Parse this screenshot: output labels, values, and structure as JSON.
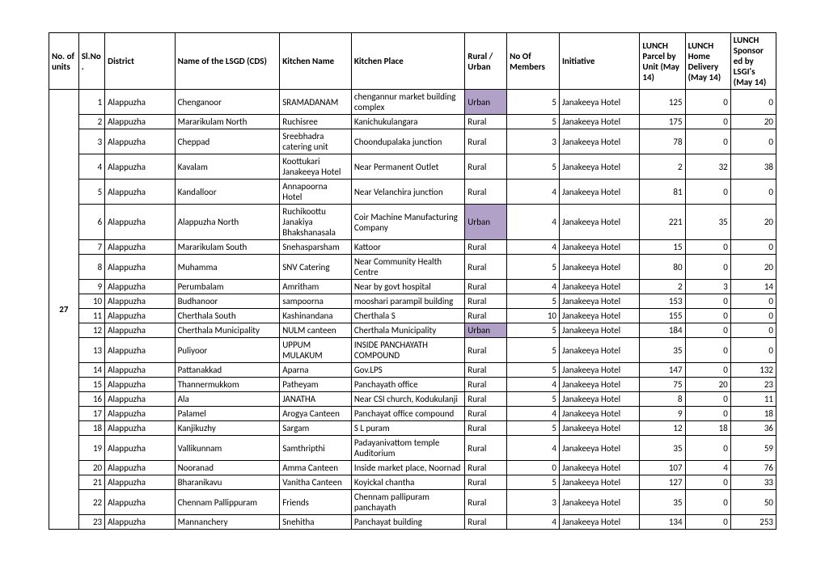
{
  "headers": {
    "units": "No. of units",
    "sl": "Sl.No.",
    "district": "District",
    "lsgd": "Name of the LSGD (CDS)",
    "kname": "Kitchen Name",
    "kplace": "Kitchen Place",
    "rural": "Rural / Urban",
    "members": "No Of Members",
    "init": "Initiative",
    "parcel": "LUNCH Parcel by Unit (May 14)",
    "home": "LUNCH Home Delivery (May 14)",
    "sponsor": "LUNCH Sponsor ed by LSGI's (May 14)"
  },
  "units_label": "27",
  "rows": [
    {
      "sl": 1,
      "district": "Alappuzha",
      "lsgd": "Chenganoor",
      "kname": "SRAMADANAM",
      "kplace": "chengannur market building complex",
      "rural": "Urban",
      "hl": true,
      "members": 5,
      "init": "Janakeeya Hotel",
      "parcel": 125,
      "home": 0,
      "sponsor": 0
    },
    {
      "sl": 2,
      "district": "Alappuzha",
      "lsgd": "Mararikulam North",
      "kname": "Ruchisree",
      "kplace": "Kanichukulangara",
      "rural": "Rural",
      "members": 5,
      "init": "Janakeeya Hotel",
      "parcel": 175,
      "home": 0,
      "sponsor": 20
    },
    {
      "sl": 3,
      "district": "Alappuzha",
      "lsgd": "Cheppad",
      "kname": "Sreebhadra catering unit",
      "kplace": "Choondupalaka junction",
      "rural": "Rural",
      "members": 3,
      "init": "Janakeeya Hotel",
      "parcel": 78,
      "home": 0,
      "sponsor": 0
    },
    {
      "sl": 4,
      "district": "Alappuzha",
      "lsgd": "Kavalam",
      "kname": "Koottukari Janakeeya Hotel",
      "kplace": "Near Permanent Outlet",
      "rural": "Rural",
      "members": 5,
      "init": "Janakeeya Hotel",
      "parcel": 2,
      "home": 32,
      "sponsor": 38
    },
    {
      "sl": 5,
      "district": "Alappuzha",
      "lsgd": "Kandalloor",
      "kname": "Annapoorna Hotel",
      "kplace": "Near Velanchira junction",
      "rural": "Rural",
      "members": 4,
      "init": "Janakeeya Hotel",
      "parcel": 81,
      "home": 0,
      "sponsor": 0
    },
    {
      "sl": 6,
      "district": "Alappuzha",
      "lsgd": "Alappuzha North",
      "kname": "Ruchikoottu Janakiya Bhakshanasala",
      "kplace": "Coir Machine Manufacturing Company",
      "rural": "Urban",
      "hl": true,
      "members": 4,
      "init": "Janakeeya Hotel",
      "parcel": 221,
      "home": 35,
      "sponsor": 20
    },
    {
      "sl": 7,
      "district": "Alappuzha",
      "lsgd": "Mararikulam South",
      "kname": "Snehasparsham",
      "kplace": "Kattoor",
      "rural": "Rural",
      "members": 4,
      "init": "Janakeeya Hotel",
      "parcel": 15,
      "home": 0,
      "sponsor": 0
    },
    {
      "sl": 8,
      "district": "Alappuzha",
      "lsgd": "Muhamma",
      "kname": "SNV Catering",
      "kplace": "Near Community Health Centre",
      "rural": "Rural",
      "members": 5,
      "init": "Janakeeya Hotel",
      "parcel": 80,
      "home": 0,
      "sponsor": 20
    },
    {
      "sl": 9,
      "district": "Alappuzha",
      "lsgd": "Perumbalam",
      "kname": "Amritham",
      "kplace": "Near by govt hospital",
      "rural": "Rural",
      "members": 4,
      "init": "Janakeeya Hotel",
      "parcel": 2,
      "home": 3,
      "sponsor": 14
    },
    {
      "sl": 10,
      "district": "Alappuzha",
      "lsgd": "Budhanoor",
      "kname": "sampoorna",
      "kplace": "mooshari parampil building",
      "rural": "Rural",
      "members": 5,
      "init": "Janakeeya Hotel",
      "parcel": 153,
      "home": 0,
      "sponsor": 0
    },
    {
      "sl": 11,
      "district": "Alappuzha",
      "lsgd": "Cherthala South",
      "kname": "Kashinandana",
      "kplace": "Cherthala S",
      "rural": "Rural",
      "members": 10,
      "init": "Janakeeya Hotel",
      "parcel": 155,
      "home": 0,
      "sponsor": 0
    },
    {
      "sl": 12,
      "district": "Alappuzha",
      "lsgd": "Cherthala Municipality",
      "kname": "NULM canteen",
      "kplace": "Cherthala Municipality",
      "rural": "Urban",
      "hl": true,
      "members": 5,
      "init": "Janakeeya Hotel",
      "parcel": 184,
      "home": 0,
      "sponsor": 0
    },
    {
      "sl": 13,
      "district": "Alappuzha",
      "lsgd": "Puliyoor",
      "kname": "UPPUM MULAKUM",
      "kplace": "INSIDE PANCHAYATH COMPOUND",
      "rural": "Rural",
      "members": 5,
      "init": "Janakeeya Hotel",
      "parcel": 35,
      "home": 0,
      "sponsor": 0
    },
    {
      "sl": 14,
      "district": "Alappuzha",
      "lsgd": "Pattanakkad",
      "kname": "Aparna",
      "kplace": "Gov.LPS",
      "rural": "Rural",
      "members": 5,
      "init": "Janakeeya Hotel",
      "parcel": 147,
      "home": 0,
      "sponsor": 132
    },
    {
      "sl": 15,
      "district": "Alappuzha",
      "lsgd": "Thannermukkom",
      "kname": "Patheyam",
      "kplace": "Panchayath office",
      "rural": "Rural",
      "members": 4,
      "init": "Janakeeya Hotel",
      "parcel": 75,
      "home": 20,
      "sponsor": 23
    },
    {
      "sl": 16,
      "district": "Alappuzha",
      "lsgd": "Ala",
      "kname": "JANATHA",
      "kplace": "Near CSI church, Kodukulanji",
      "rural": "Rural",
      "members": 5,
      "init": "Janakeeya Hotel",
      "parcel": 8,
      "home": 0,
      "sponsor": 11
    },
    {
      "sl": 17,
      "district": "Alappuzha",
      "lsgd": "Palamel",
      "kname": "Arogya Canteen",
      "kplace": "Panchayat office compound",
      "rural": "Rural",
      "members": 4,
      "init": "Janakeeya Hotel",
      "parcel": 9,
      "home": 0,
      "sponsor": 18
    },
    {
      "sl": 18,
      "district": "Alappuzha",
      "lsgd": "Kanjikuzhy",
      "kname": "Sargam",
      "kplace": "S L puram",
      "rural": "Rural",
      "members": 5,
      "init": "Janakeeya Hotel",
      "parcel": 12,
      "home": 18,
      "sponsor": 36
    },
    {
      "sl": 19,
      "district": "Alappuzha",
      "lsgd": "Vallikunnam",
      "kname": "Samthripthi",
      "kplace": "Padayanivattom temple Auditorium",
      "rural": "Rural",
      "members": 4,
      "init": "Janakeeya Hotel",
      "parcel": 35,
      "home": 0,
      "sponsor": 59
    },
    {
      "sl": 20,
      "district": "Alappuzha",
      "lsgd": "Nooranad",
      "kname": "Amma Canteen",
      "kplace": "Inside market place, Noornad",
      "rural": "Rural",
      "members": 0,
      "init": "Janakeeya Hotel",
      "parcel": 107,
      "home": 4,
      "sponsor": 76
    },
    {
      "sl": 21,
      "district": "Alappuzha",
      "lsgd": "Bharanikavu",
      "kname": "Vanitha Canteen",
      "kplace": "Koyickal chantha",
      "rural": "Rural",
      "members": 5,
      "init": "Janakeeya Hotel",
      "parcel": 127,
      "home": 0,
      "sponsor": 33
    },
    {
      "sl": 22,
      "district": "Alappuzha",
      "lsgd": "Chennam Pallippuram",
      "kname": "Friends",
      "kplace": "Chennam pallipuram panchayath",
      "rural": "Rural",
      "members": 3,
      "init": "Janakeeya Hotel",
      "parcel": 35,
      "home": 0,
      "sponsor": 50
    },
    {
      "sl": 23,
      "district": "Alappuzha",
      "lsgd": "Mannanchery",
      "kname": "Snehitha",
      "kplace": "Panchayat building",
      "rural": "Rural",
      "members": 4,
      "init": "Janakeeya Hotel",
      "parcel": 134,
      "home": 0,
      "sponsor": 253
    }
  ]
}
